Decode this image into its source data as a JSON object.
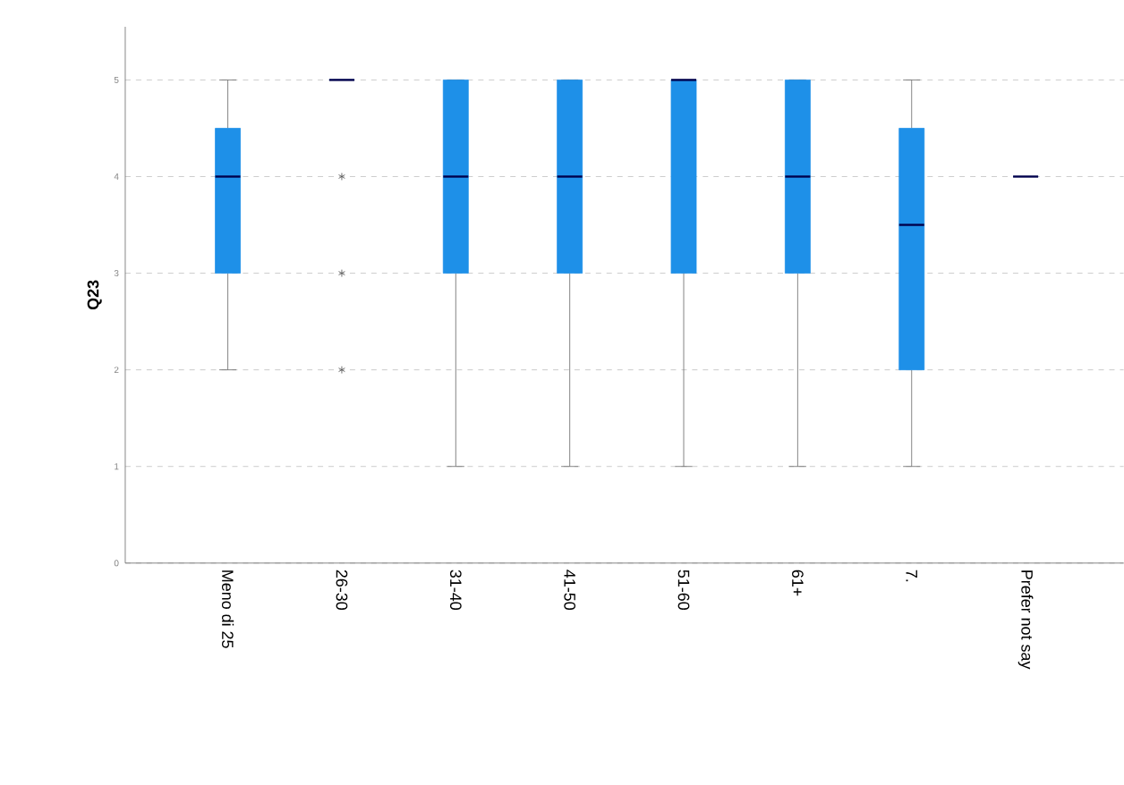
{
  "chart_data": {
    "type": "box",
    "ylabel": "Q23",
    "categories": [
      "Meno di 25",
      "26-30",
      "31-40",
      "41-50",
      "51-60",
      "61+",
      "7.",
      "Prefer not say"
    ],
    "series": [
      {
        "color": "#1e90e8",
        "boxes": [
          {
            "low": 2,
            "q1": 3,
            "median": 4,
            "q3": 4.5,
            "high": 5
          },
          {
            "low": 5,
            "q1": 5,
            "median": 5,
            "q3": 5,
            "high": 5,
            "outliers": [
              4,
              3,
              2
            ]
          },
          {
            "low": 1,
            "q1": 3,
            "median": 4,
            "q3": 5,
            "high": 5
          },
          {
            "low": 1,
            "q1": 3,
            "median": 4,
            "q3": 5,
            "high": 5
          },
          {
            "low": 1,
            "q1": 3,
            "median": 5,
            "q3": 5,
            "high": 5
          },
          {
            "low": 1,
            "q1": 3,
            "median": 4,
            "q3": 5,
            "high": 5
          },
          {
            "low": 1,
            "q1": 2,
            "median": 3.5,
            "q3": 4.5,
            "high": 5
          },
          {
            "low": 4,
            "q1": 4,
            "median": 4,
            "q3": 4,
            "high": 4
          }
        ]
      }
    ],
    "ylim": [
      0,
      5.55
    ],
    "yticks": [
      0,
      1,
      2,
      3,
      4,
      5
    ],
    "grid": "y",
    "marker": "star"
  }
}
